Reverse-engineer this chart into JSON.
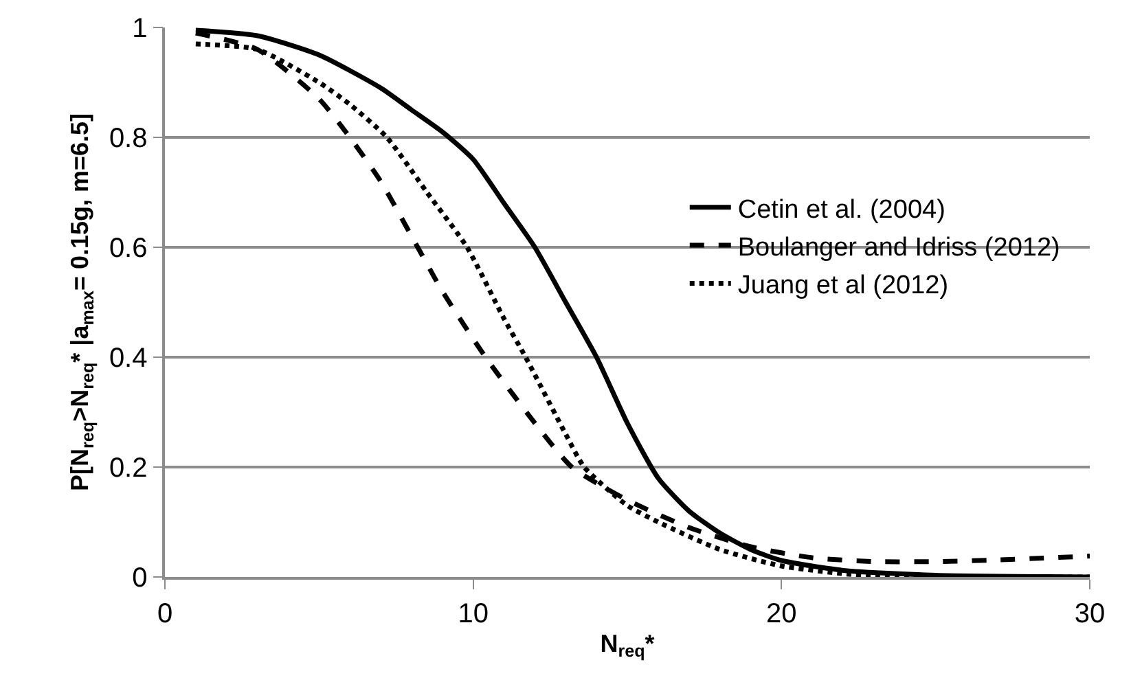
{
  "chart_data": {
    "type": "line",
    "xlabel": "N$_{req}$*",
    "ylabel": "P[N$_{req}$>N$_{req}$* |a$_{max}$= 0.15g, m=6.5]",
    "xlim": [
      0,
      30
    ],
    "xticks": [
      0,
      10,
      20,
      30
    ],
    "ylim": [
      0,
      1
    ],
    "yticks": [
      0,
      0.2,
      0.4,
      0.6,
      0.8,
      1
    ],
    "grid": "y",
    "legend": "right",
    "marker": "none",
    "series": [
      {
        "name": "Cetin et al. (2004)",
        "color": "#000000",
        "line_style": "solid",
        "x": [
          1,
          3,
          5,
          7,
          8,
          9,
          10,
          11,
          12,
          13,
          14,
          15,
          16,
          17,
          18,
          19,
          20,
          22,
          25,
          30
        ],
        "values": [
          0.995,
          0.985,
          0.95,
          0.89,
          0.85,
          0.81,
          0.76,
          0.68,
          0.6,
          0.5,
          0.4,
          0.28,
          0.18,
          0.12,
          0.08,
          0.05,
          0.03,
          0.012,
          0.003,
          0
        ]
      },
      {
        "name": "Boulanger and Idriss (2012)",
        "color": "#000000",
        "line_style": "dashed",
        "x": [
          1,
          3,
          5,
          6,
          7,
          8.2,
          9,
          10.4,
          12,
          13.2,
          15,
          17,
          19,
          21,
          23,
          25,
          27,
          30
        ],
        "values": [
          0.99,
          0.96,
          0.87,
          0.8,
          0.72,
          0.6,
          0.52,
          0.4,
          0.28,
          0.2,
          0.14,
          0.09,
          0.055,
          0.035,
          0.028,
          0.028,
          0.031,
          0.038
        ]
      },
      {
        "name": "Juang et al (2012)",
        "color": "#000000",
        "line_style": "dotted",
        "x": [
          1,
          3,
          5,
          6,
          7.2,
          8.5,
          9.8,
          11,
          11.7,
          13,
          13.6,
          15,
          16,
          18,
          20,
          22,
          23,
          25,
          30
        ],
        "values": [
          0.97,
          0.96,
          0.9,
          0.86,
          0.8,
          0.7,
          0.6,
          0.47,
          0.4,
          0.26,
          0.2,
          0.13,
          0.1,
          0.05,
          0.02,
          0.006,
          0.002,
          0,
          0
        ]
      }
    ]
  }
}
